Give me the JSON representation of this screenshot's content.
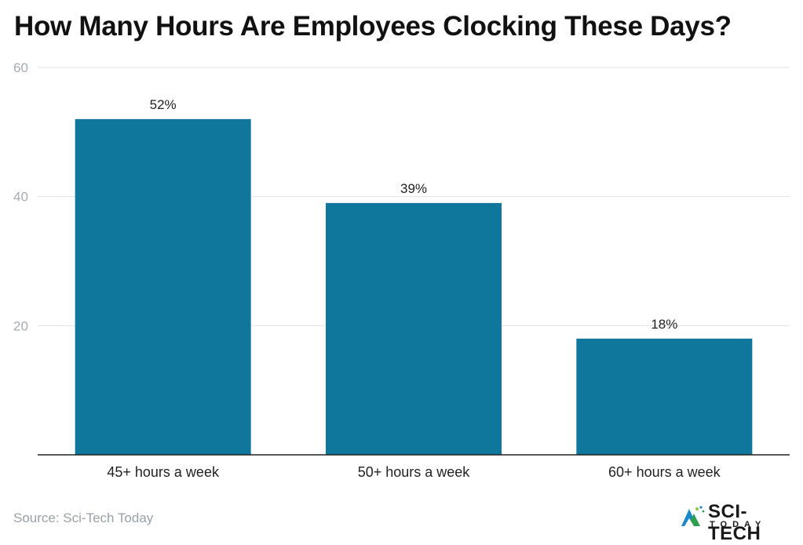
{
  "chart_data": {
    "type": "bar",
    "title": "How Many Hours Are Employees Clocking These Days?",
    "categories": [
      "45+ hours a week",
      "50+ hours a week",
      "60+ hours a week"
    ],
    "values": [
      52,
      39,
      18
    ],
    "value_labels": [
      "52%",
      "39%",
      "18%"
    ],
    "ylim": [
      0,
      60
    ],
    "yticks": [
      20,
      40,
      60
    ],
    "grid": true,
    "xlabel": "",
    "ylabel": "",
    "colors": {
      "bar": "#0f769c",
      "grid": "#e3e3e3",
      "axis": "#222222",
      "tick_text": "#a7acb1"
    }
  },
  "source": "Source: Sci-Tech Today",
  "logo": {
    "brand": "SCI-TECH",
    "tagline": "TODAY",
    "icon": "sci-tech-logo-icon"
  }
}
